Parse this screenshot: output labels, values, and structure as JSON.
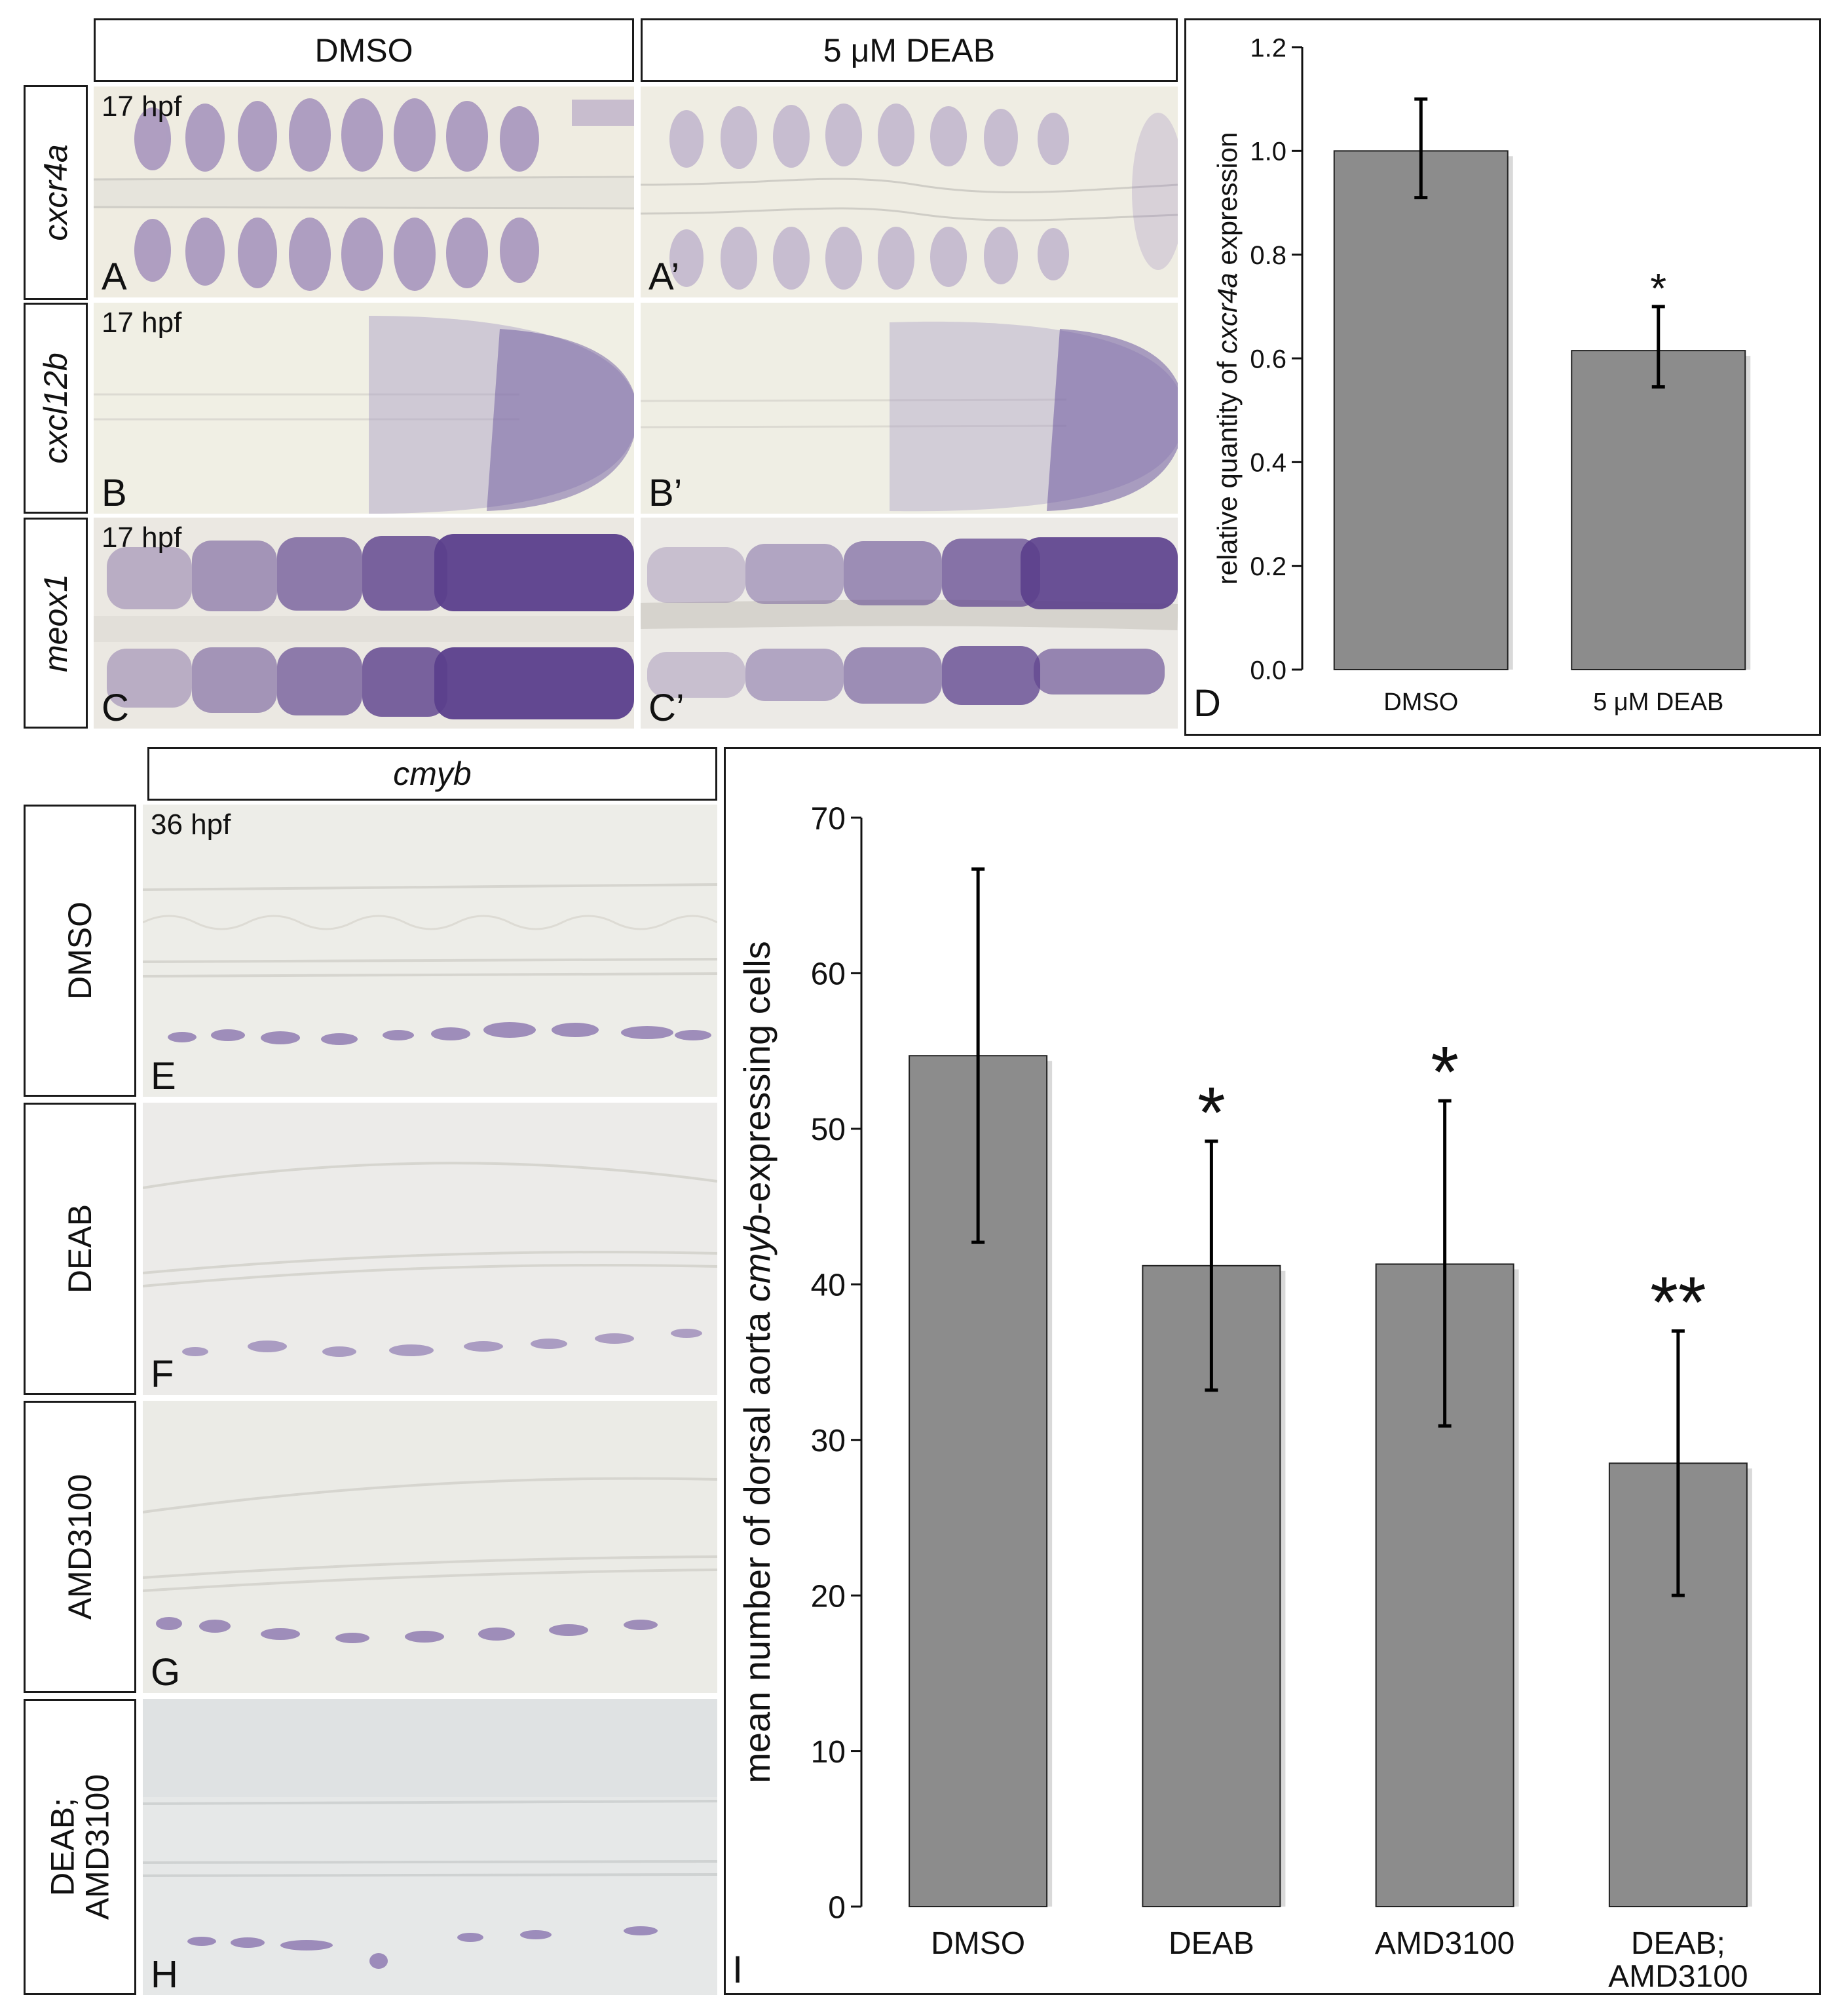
{
  "panel_top": {
    "col_headers": [
      "DMSO",
      "5 μM DEAB"
    ],
    "rows": [
      {
        "gene": "cxcr4a",
        "stage": "17 hpf",
        "left_letter": "A",
        "right_letter": "A’"
      },
      {
        "gene": "cxcl12b",
        "stage": "17 hpf",
        "left_letter": "B",
        "right_letter": "B’"
      },
      {
        "gene": "meox1",
        "stage": "17 hpf",
        "left_letter": "C",
        "right_letter": "C’"
      }
    ]
  },
  "panel_bottom": {
    "col_header": "cmyb",
    "stage": "36 hpf",
    "rows": [
      {
        "condition": "DMSO",
        "letter": "E"
      },
      {
        "condition": "DEAB",
        "letter": "F"
      },
      {
        "condition": "AMD3100",
        "letter": "G"
      },
      {
        "condition": "DEAB;\nAMD3100",
        "letter": "H"
      }
    ]
  },
  "chart_data": [
    {
      "panel": "D",
      "type": "bar",
      "ylabel": "relative quantity of cxcr4a expression",
      "ylabel_parts": [
        "relative quantity of ",
        "cxcr4a",
        " expression"
      ],
      "categories": [
        "DMSO",
        "5 μM DEAB"
      ],
      "values": [
        1.0,
        0.615
      ],
      "errors": [
        [
          0.91,
          1.1
        ],
        [
          0.545,
          0.7
        ]
      ],
      "significance": [
        "",
        "*"
      ],
      "ylim": [
        0,
        1.2
      ],
      "yticks": [
        "0.0",
        "0.2",
        "0.4",
        "0.6",
        "0.8",
        "1.0",
        "1.2"
      ],
      "bar_color": "#8c8c8c",
      "grid": false
    },
    {
      "panel": "I",
      "type": "bar",
      "ylabel": "mean number of dorsal aorta cmyb-expressing cells",
      "ylabel_parts": [
        "mean number of dorsal aorta ",
        "cmyb",
        "-expressing cells"
      ],
      "categories": [
        "DMSO",
        "DEAB",
        "AMD3100",
        "DEAB;\nAMD3100"
      ],
      "values": [
        54.7,
        41.2,
        41.3,
        28.5
      ],
      "errors": [
        [
          42.7,
          66.7
        ],
        [
          33.2,
          49.2
        ],
        [
          30.9,
          51.8
        ],
        [
          20.0,
          37.0
        ]
      ],
      "significance": [
        "",
        "*",
        "*",
        "**"
      ],
      "ylim": [
        0,
        70
      ],
      "yticks": [
        "0",
        "10",
        "20",
        "30",
        "40",
        "50",
        "60",
        "70"
      ],
      "bar_color": "#8c8c8c",
      "grid": false
    }
  ],
  "colors": {
    "stain": "#5b3f8c",
    "tissue": "#efece0",
    "bar": "#8c8c8c"
  }
}
